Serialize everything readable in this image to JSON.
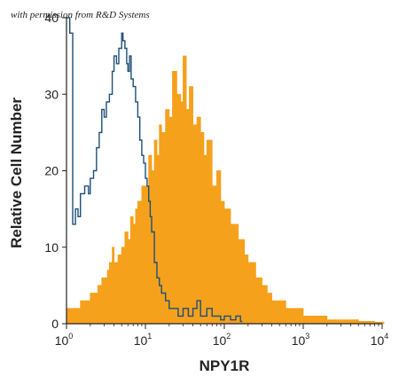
{
  "watermark": "with permission from R&D Systems",
  "chart_data": {
    "type": "area",
    "x_scale": "log",
    "xlim": [
      1,
      10000
    ],
    "ylim": [
      0,
      40
    ],
    "xlabel": "NPY1R",
    "ylabel": "Relative Cell Number",
    "x_ticks": [
      {
        "value": 1,
        "base": "10",
        "exp": "0"
      },
      {
        "value": 10,
        "base": "10",
        "exp": "1"
      },
      {
        "value": 100,
        "base": "10",
        "exp": "2"
      },
      {
        "value": 1000,
        "base": "10",
        "exp": "3"
      },
      {
        "value": 10000,
        "base": "10",
        "exp": "4"
      }
    ],
    "y_ticks": [
      0,
      10,
      20,
      30,
      40
    ],
    "colors": {
      "filled": "#f5a11c",
      "outline": "#1f4e79"
    },
    "series": [
      {
        "style": "filled",
        "x": [
          1.0,
          1.2,
          1.5,
          1.8,
          2.0,
          2.2,
          2.5,
          2.8,
          3.0,
          3.3,
          3.5,
          3.8,
          4.0,
          4.5,
          5.0,
          5.5,
          6.0,
          6.5,
          7.0,
          7.5,
          8.0,
          9.0,
          10.0,
          11.0,
          12.0,
          13.0,
          14.0,
          15.0,
          16.0,
          18.0,
          20.0,
          22.0,
          25.0,
          28.0,
          30.0,
          33.0,
          36.0,
          40.0,
          45.0,
          50.0,
          55.0,
          60.0,
          70.0,
          80.0,
          90.0,
          100.0,
          120.0,
          150.0,
          180.0,
          200.0,
          250.0,
          300.0,
          350.0,
          400.0,
          500.0,
          600.0,
          700.0,
          800.0,
          1000.0,
          1200.0,
          1500.0,
          1800.0,
          2000.0,
          2500.0,
          3000.0,
          4000.0,
          5000.0,
          6000.0,
          8000.0,
          10000.0
        ],
        "y": [
          2.0,
          2.0,
          3.0,
          3.0,
          4.0,
          4.0,
          5.0,
          6.0,
          6.0,
          7.0,
          8.0,
          10.0,
          8.0,
          9.0,
          10.0,
          12.0,
          11.0,
          14.0,
          13.0,
          15.0,
          16.0,
          18.0,
          18.0,
          22.0,
          20.0,
          24.0,
          22.0,
          26.0,
          25.0,
          28.0,
          27.0,
          33.0,
          30.0,
          29.0,
          35.0,
          28.0,
          31.0,
          26.0,
          27.0,
          25.0,
          22.0,
          24.0,
          18.0,
          20.0,
          16.0,
          15.0,
          13.0,
          11.0,
          9.0,
          8.0,
          6.0,
          5.0,
          4.0,
          3.0,
          3.0,
          2.0,
          2.0,
          2.0,
          1.0,
          1.0,
          1.0,
          1.0,
          0.5,
          0.5,
          0.5,
          0.5,
          0.3,
          0.3,
          0.2,
          0.2
        ]
      },
      {
        "style": "outline",
        "x": [
          1.0,
          1.1,
          1.2,
          1.3,
          1.4,
          1.5,
          1.7,
          1.9,
          2.0,
          2.2,
          2.4,
          2.6,
          2.8,
          3.0,
          3.2,
          3.5,
          3.8,
          4.0,
          4.3,
          4.6,
          5.0,
          5.2,
          5.5,
          5.8,
          6.0,
          6.3,
          6.6,
          7.0,
          7.5,
          8.0,
          8.5,
          9.0,
          9.5,
          10.0,
          10.5,
          11.0,
          11.5,
          12.0,
          13.0,
          14.0,
          15.0,
          16.0,
          18.0,
          20.0,
          23.0,
          26.0,
          30.0,
          35.0,
          40.0,
          45.0,
          50.0,
          60.0,
          70.0,
          80.0,
          90.0,
          100.0,
          120.0,
          140.0,
          160.0
        ],
        "y": [
          40.0,
          38.0,
          13.0,
          15.0,
          14.0,
          17.0,
          18.0,
          17.0,
          19.0,
          20.0,
          23.0,
          25.0,
          28.0,
          27.0,
          29.0,
          30.0,
          33.0,
          35.0,
          34.0,
          36.0,
          38.0,
          37.0,
          36.0,
          34.0,
          33.0,
          35.0,
          32.0,
          31.0,
          29.0,
          27.0,
          24.0,
          22.0,
          21.0,
          19.0,
          18.0,
          16.0,
          14.0,
          12.0,
          8.0,
          6.0,
          5.0,
          4.0,
          3.0,
          2.0,
          2.0,
          1.0,
          2.0,
          1.0,
          2.0,
          3.0,
          1.0,
          2.0,
          1.0,
          1.0,
          0.5,
          1.0,
          0.5,
          1.0,
          0.3
        ]
      }
    ]
  }
}
